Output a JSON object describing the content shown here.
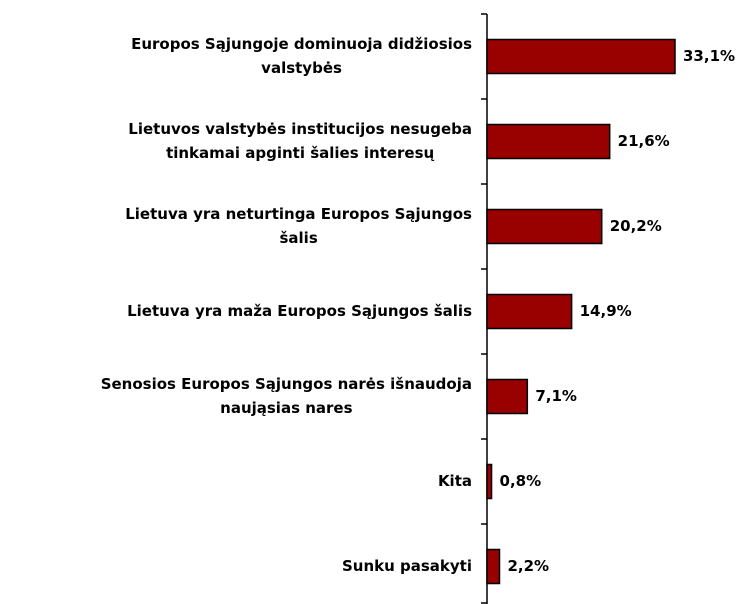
{
  "chart_data": {
    "type": "bar",
    "orientation": "horizontal",
    "categories": [
      [
        "Europos Sąjungoje dominuoja didžiosios",
        "valstybės"
      ],
      [
        "Lietuvos valstybės institucijos nesugeba",
        "tinkamai apginti šalies interesų"
      ],
      [
        "Lietuva yra neturtinga Europos Sąjungos",
        "šalis"
      ],
      [
        "Lietuva yra maža Europos Sąjungos šalis"
      ],
      [
        "Senosios Europos Sąjungos narės išnaudoja",
        "naująsias nares"
      ],
      [
        "Kita"
      ],
      [
        "Sunku pasakyti"
      ]
    ],
    "values": [
      33.1,
      21.6,
      20.2,
      14.9,
      7.1,
      0.8,
      2.2
    ],
    "value_labels": [
      "33,1%",
      "21,6%",
      "20,2%",
      "14,9%",
      "7,1%",
      "0,8%",
      "2,2%"
    ],
    "color": "#990000"
  }
}
